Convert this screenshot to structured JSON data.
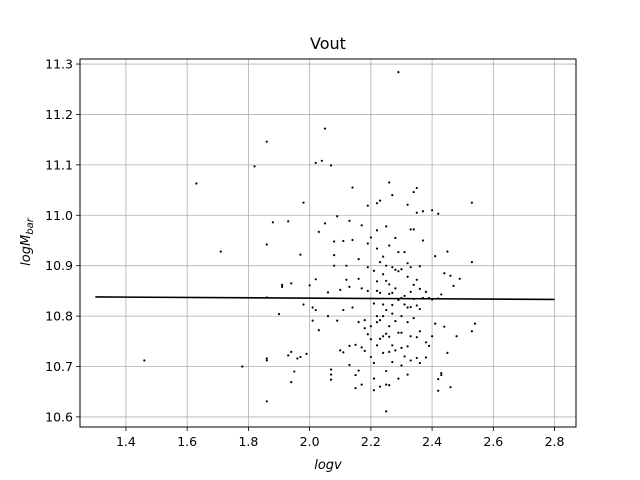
{
  "chart_data": {
    "type": "scatter",
    "title": "Vout",
    "xlabel": "logv",
    "ylabel_main": "logM",
    "ylabel_sub": "bar",
    "xlim": [
      1.25,
      2.87
    ],
    "ylim": [
      10.58,
      11.31
    ],
    "xticks": [
      1.4,
      1.6,
      1.8,
      2.0,
      2.2,
      2.4,
      2.6,
      2.8
    ],
    "xtick_labels": [
      "1.4",
      "1.6",
      "1.8",
      "2.0",
      "2.2",
      "2.4",
      "2.6",
      "2.8"
    ],
    "yticks": [
      10.6,
      10.7,
      10.8,
      10.9,
      11.0,
      11.1,
      11.2,
      11.3
    ],
    "ytick_labels": [
      "10.6",
      "10.7",
      "10.8",
      "10.9",
      "11.0",
      "11.1",
      "11.2",
      "11.3"
    ],
    "grid": true,
    "fit_line": {
      "x": [
        1.3,
        2.8
      ],
      "y": [
        10.838,
        10.833
      ]
    },
    "points": [
      [
        1.46,
        10.712
      ],
      [
        1.63,
        11.063
      ],
      [
        1.71,
        10.928
      ],
      [
        1.78,
        10.7
      ],
      [
        1.82,
        11.097
      ],
      [
        1.86,
        11.146
      ],
      [
        1.86,
        10.942
      ],
      [
        1.86,
        10.837
      ],
      [
        1.86,
        10.716
      ],
      [
        1.86,
        10.712
      ],
      [
        1.86,
        10.631
      ],
      [
        1.88,
        10.986
      ],
      [
        1.9,
        10.804
      ],
      [
        1.91,
        10.862
      ],
      [
        1.91,
        10.858
      ],
      [
        1.93,
        10.988
      ],
      [
        1.93,
        10.722
      ],
      [
        1.94,
        10.729
      ],
      [
        1.94,
        10.669
      ],
      [
        1.94,
        10.865
      ],
      [
        1.95,
        10.69
      ],
      [
        1.96,
        10.716
      ],
      [
        1.97,
        10.922
      ],
      [
        1.97,
        10.719
      ],
      [
        1.98,
        11.025
      ],
      [
        1.98,
        10.823
      ],
      [
        1.99,
        10.725
      ],
      [
        2.0,
        10.861
      ],
      [
        2.01,
        10.817
      ],
      [
        2.01,
        10.791
      ],
      [
        2.02,
        11.104
      ],
      [
        2.02,
        10.873
      ],
      [
        2.02,
        10.812
      ],
      [
        2.03,
        10.967
      ],
      [
        2.03,
        10.772
      ],
      [
        2.04,
        11.108
      ],
      [
        2.05,
        11.172
      ],
      [
        2.05,
        10.984
      ],
      [
        2.06,
        10.847
      ],
      [
        2.06,
        10.8
      ],
      [
        2.07,
        11.099
      ],
      [
        2.07,
        10.694
      ],
      [
        2.07,
        10.684
      ],
      [
        2.07,
        10.674
      ],
      [
        2.08,
        10.948
      ],
      [
        2.08,
        10.921
      ],
      [
        2.08,
        10.9
      ],
      [
        2.09,
        10.998
      ],
      [
        2.09,
        10.791
      ],
      [
        2.1,
        10.852
      ],
      [
        2.1,
        10.732
      ],
      [
        2.11,
        10.949
      ],
      [
        2.11,
        10.812
      ],
      [
        2.11,
        10.728
      ],
      [
        2.12,
        10.9
      ],
      [
        2.12,
        10.872
      ],
      [
        2.13,
        10.989
      ],
      [
        2.13,
        10.858
      ],
      [
        2.13,
        10.741
      ],
      [
        2.13,
        10.703
      ],
      [
        2.14,
        11.055
      ],
      [
        2.14,
        10.817
      ],
      [
        2.14,
        10.951
      ],
      [
        2.15,
        10.743
      ],
      [
        2.15,
        10.683
      ],
      [
        2.15,
        10.657
      ],
      [
        2.16,
        10.913
      ],
      [
        2.16,
        10.874
      ],
      [
        2.16,
        10.788
      ],
      [
        2.16,
        10.692
      ],
      [
        2.17,
        10.98
      ],
      [
        2.17,
        10.855
      ],
      [
        2.17,
        10.738
      ],
      [
        2.17,
        10.664
      ],
      [
        2.18,
        10.792
      ],
      [
        2.18,
        10.776
      ],
      [
        2.18,
        10.731
      ],
      [
        2.19,
        11.019
      ],
      [
        2.19,
        10.944
      ],
      [
        2.19,
        10.897
      ],
      [
        2.19,
        10.85
      ],
      [
        2.19,
        10.764
      ],
      [
        2.2,
        10.956
      ],
      [
        2.2,
        10.78
      ],
      [
        2.2,
        10.754
      ],
      [
        2.2,
        10.719
      ],
      [
        2.21,
        10.89
      ],
      [
        2.21,
        10.825
      ],
      [
        2.21,
        10.707
      ],
      [
        2.21,
        10.653
      ],
      [
        2.21,
        10.676
      ],
      [
        2.22,
        11.024
      ],
      [
        2.22,
        10.97
      ],
      [
        2.22,
        10.934
      ],
      [
        2.22,
        10.869
      ],
      [
        2.22,
        10.85
      ],
      [
        2.22,
        10.8
      ],
      [
        2.22,
        10.788
      ],
      [
        2.22,
        10.742
      ],
      [
        2.23,
        11.029
      ],
      [
        2.23,
        10.907
      ],
      [
        2.23,
        10.846
      ],
      [
        2.23,
        10.792
      ],
      [
        2.23,
        10.755
      ],
      [
        2.23,
        10.66
      ],
      [
        2.24,
        10.918
      ],
      [
        2.24,
        10.883
      ],
      [
        2.24,
        10.823
      ],
      [
        2.24,
        10.8
      ],
      [
        2.24,
        10.76
      ],
      [
        2.24,
        10.727
      ],
      [
        2.25,
        10.978
      ],
      [
        2.25,
        10.9
      ],
      [
        2.25,
        10.87
      ],
      [
        2.25,
        10.812
      ],
      [
        2.25,
        10.765
      ],
      [
        2.25,
        10.691
      ],
      [
        2.25,
        10.664
      ],
      [
        2.25,
        10.611
      ],
      [
        2.26,
        11.065
      ],
      [
        2.26,
        10.94
      ],
      [
        2.26,
        10.863
      ],
      [
        2.26,
        10.844
      ],
      [
        2.26,
        10.78
      ],
      [
        2.26,
        10.759
      ],
      [
        2.26,
        10.729
      ],
      [
        2.26,
        10.663
      ],
      [
        2.27,
        11.04
      ],
      [
        2.27,
        10.897
      ],
      [
        2.27,
        10.846
      ],
      [
        2.27,
        10.822
      ],
      [
        2.27,
        10.805
      ],
      [
        2.27,
        10.742
      ],
      [
        2.27,
        10.709
      ],
      [
        2.28,
        10.955
      ],
      [
        2.28,
        10.892
      ],
      [
        2.28,
        10.855
      ],
      [
        2.28,
        10.79
      ],
      [
        2.28,
        10.732
      ],
      [
        2.29,
        11.284
      ],
      [
        2.29,
        10.927
      ],
      [
        2.29,
        10.889
      ],
      [
        2.29,
        10.832
      ],
      [
        2.29,
        10.767
      ],
      [
        2.29,
        10.676
      ],
      [
        2.3,
        10.893
      ],
      [
        2.3,
        10.836
      ],
      [
        2.3,
        10.8
      ],
      [
        2.3,
        10.767
      ],
      [
        2.3,
        10.737
      ],
      [
        2.3,
        10.702
      ],
      [
        2.31,
        10.927
      ],
      [
        2.31,
        10.84
      ],
      [
        2.31,
        10.823
      ],
      [
        2.31,
        10.72
      ],
      [
        2.32,
        11.021
      ],
      [
        2.32,
        10.905
      ],
      [
        2.32,
        10.878
      ],
      [
        2.32,
        10.817
      ],
      [
        2.32,
        10.788
      ],
      [
        2.32,
        10.74
      ],
      [
        2.32,
        10.684
      ],
      [
        2.33,
        10.972
      ],
      [
        2.33,
        10.897
      ],
      [
        2.33,
        10.848
      ],
      [
        2.33,
        10.818
      ],
      [
        2.33,
        10.76
      ],
      [
        2.33,
        10.712
      ],
      [
        2.34,
        11.046
      ],
      [
        2.34,
        10.972
      ],
      [
        2.34,
        10.862
      ],
      [
        2.34,
        10.834
      ],
      [
        2.34,
        10.796
      ],
      [
        2.35,
        11.054
      ],
      [
        2.35,
        11.005
      ],
      [
        2.35,
        10.872
      ],
      [
        2.35,
        10.821
      ],
      [
        2.35,
        10.758
      ],
      [
        2.35,
        10.717
      ],
      [
        2.36,
        10.899
      ],
      [
        2.36,
        10.854
      ],
      [
        2.36,
        10.814
      ],
      [
        2.36,
        10.77
      ],
      [
        2.36,
        10.707
      ],
      [
        2.37,
        11.008
      ],
      [
        2.37,
        10.95
      ],
      [
        2.37,
        10.836
      ],
      [
        2.38,
        10.848
      ],
      [
        2.38,
        10.748
      ],
      [
        2.38,
        10.718
      ],
      [
        2.39,
        10.836
      ],
      [
        2.39,
        10.741
      ],
      [
        2.4,
        11.01
      ],
      [
        2.4,
        10.833
      ],
      [
        2.4,
        10.76
      ],
      [
        2.41,
        10.919
      ],
      [
        2.41,
        10.785
      ],
      [
        2.42,
        11.003
      ],
      [
        2.42,
        10.835
      ],
      [
        2.42,
        10.675
      ],
      [
        2.42,
        10.652
      ],
      [
        2.43,
        10.843
      ],
      [
        2.43,
        10.687
      ],
      [
        2.43,
        10.683
      ],
      [
        2.44,
        10.885
      ],
      [
        2.44,
        10.779
      ],
      [
        2.45,
        10.928
      ],
      [
        2.45,
        10.727
      ],
      [
        2.46,
        10.88
      ],
      [
        2.46,
        10.659
      ],
      [
        2.47,
        10.86
      ],
      [
        2.48,
        10.76
      ],
      [
        2.49,
        10.874
      ],
      [
        2.53,
        11.025
      ],
      [
        2.53,
        10.907
      ],
      [
        2.53,
        10.77
      ],
      [
        2.54,
        10.785
      ]
    ]
  }
}
